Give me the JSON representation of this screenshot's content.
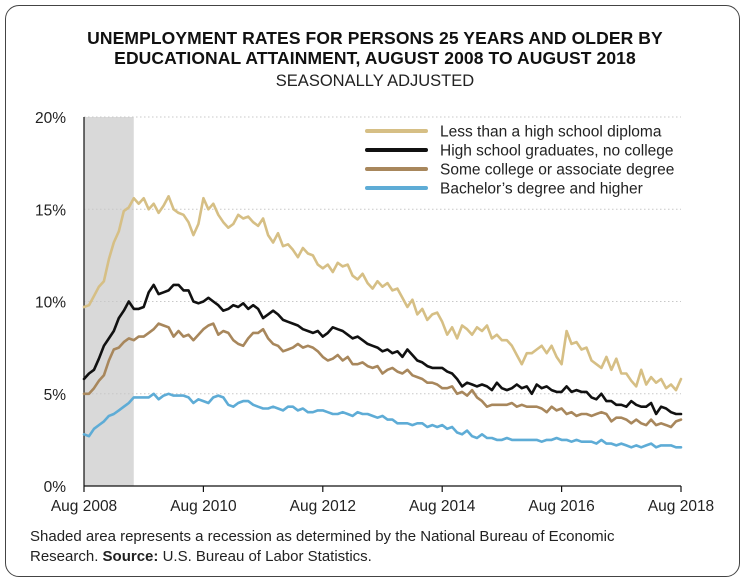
{
  "chart_data": {
    "type": "line",
    "title_line1": "UNEMPLOYMENT RATES FOR PERSONS 25 YEARS AND OLDER BY",
    "title_line2": "EDUCATIONAL ATTAINMENT, AUGUST 2008 TO AUGUST 2018",
    "subtitle": "SEASONALLY ADJUSTED",
    "xlabel": "",
    "ylabel": "",
    "x_range": [
      "Aug 2008",
      "Aug 2018"
    ],
    "ylim": [
      0,
      20
    ],
    "x_ticks": [
      "Aug 2008",
      "Aug 2010",
      "Aug 2012",
      "Aug 2014",
      "Aug 2016",
      "Aug 2018"
    ],
    "y_ticks": [
      {
        "value": 0,
        "label": "0%"
      },
      {
        "value": 5,
        "label": "5%"
      },
      {
        "value": 10,
        "label": "10%"
      },
      {
        "value": 15,
        "label": "15%"
      },
      {
        "value": 20,
        "label": "20%"
      }
    ],
    "grid": true,
    "legend_position": "top-right",
    "recession_shade": {
      "start": "Aug 2008",
      "end": "Jun 2009",
      "color": "#d9d9d9"
    },
    "series": [
      {
        "name": "Less than a high school diploma",
        "color": "#d6bf85",
        "monthly_start": "Aug 2008",
        "values": [
          9.7,
          9.8,
          10.3,
          10.8,
          11.1,
          12.3,
          13.2,
          13.8,
          14.9,
          15.1,
          15.6,
          15.3,
          15.6,
          15.0,
          15.3,
          14.8,
          15.2,
          15.7,
          15.0,
          14.8,
          14.7,
          14.3,
          13.6,
          14.2,
          15.6,
          15.0,
          15.3,
          14.7,
          14.3,
          14.0,
          14.2,
          14.7,
          14.5,
          14.6,
          14.3,
          14.1,
          14.5,
          13.6,
          13.2,
          13.7,
          13.0,
          13.1,
          12.8,
          12.4,
          12.9,
          12.6,
          12.5,
          12.0,
          11.8,
          12.0,
          11.6,
          12.1,
          11.9,
          12.0,
          11.4,
          11.2,
          11.5,
          11.0,
          10.7,
          11.1,
          10.8,
          11.0,
          10.6,
          10.7,
          10.2,
          9.7,
          10.1,
          9.3,
          9.6,
          9.0,
          9.3,
          9.4,
          8.9,
          8.2,
          8.6,
          8.0,
          8.7,
          8.5,
          8.2,
          8.6,
          8.4,
          8.7,
          8.0,
          8.2,
          7.9,
          7.9,
          7.6,
          7.1,
          6.6,
          7.2,
          7.2,
          7.4,
          7.6,
          7.2,
          7.6,
          7.0,
          6.6,
          8.4,
          7.7,
          7.8,
          7.4,
          7.5,
          6.8,
          6.6,
          6.4,
          7.0,
          6.3,
          6.9,
          6.1,
          6.1,
          5.7,
          5.4,
          6.3,
          5.5,
          5.9,
          5.6,
          5.8,
          5.3,
          5.5,
          5.2,
          5.8
        ]
      },
      {
        "name": "High school graduates, no college",
        "color": "#111111",
        "monthly_start": "Aug 2008",
        "values": [
          5.8,
          6.1,
          6.3,
          6.9,
          7.6,
          8.0,
          8.4,
          9.1,
          9.5,
          10.0,
          9.6,
          9.6,
          9.7,
          10.5,
          10.9,
          10.4,
          10.5,
          10.6,
          10.9,
          10.9,
          10.6,
          10.6,
          10.0,
          9.9,
          10.0,
          10.2,
          10.0,
          9.8,
          9.5,
          9.6,
          9.8,
          9.7,
          9.9,
          9.6,
          9.8,
          9.6,
          9.1,
          9.3,
          9.5,
          9.3,
          9.0,
          8.9,
          8.8,
          8.7,
          8.5,
          8.4,
          8.3,
          8.4,
          8.1,
          8.3,
          8.6,
          8.5,
          8.4,
          8.2,
          8.0,
          8.1,
          7.9,
          7.7,
          7.6,
          7.5,
          7.3,
          7.4,
          7.2,
          7.3,
          7.0,
          7.4,
          7.1,
          6.8,
          6.7,
          6.5,
          6.4,
          6.4,
          6.4,
          6.2,
          6.1,
          5.8,
          5.4,
          5.6,
          5.5,
          5.4,
          5.5,
          5.4,
          5.2,
          5.6,
          5.3,
          5.2,
          5.3,
          5.5,
          5.3,
          5.4,
          5.0,
          5.5,
          5.3,
          5.4,
          5.2,
          5.1,
          5.1,
          5.4,
          5.1,
          5.2,
          5.1,
          5.1,
          4.8,
          4.7,
          5.0,
          4.6,
          4.6,
          4.4,
          4.4,
          4.3,
          4.6,
          4.4,
          4.3,
          4.3,
          4.5,
          3.9,
          4.3,
          4.2,
          4.0,
          3.9,
          3.9
        ]
      },
      {
        "name": "Some college or associate degree",
        "color": "#a8875c",
        "monthly_start": "Aug 2008",
        "values": [
          5.0,
          5.0,
          5.3,
          5.7,
          6.0,
          6.8,
          7.4,
          7.5,
          7.8,
          8.0,
          7.9,
          8.1,
          8.1,
          8.3,
          8.5,
          8.8,
          8.7,
          8.6,
          8.1,
          8.4,
          8.1,
          8.2,
          7.9,
          8.2,
          8.5,
          8.7,
          8.8,
          8.2,
          8.4,
          8.3,
          7.9,
          7.7,
          7.6,
          8.0,
          8.3,
          8.3,
          8.5,
          8.0,
          7.7,
          7.6,
          7.3,
          7.4,
          7.5,
          7.7,
          7.5,
          7.6,
          7.5,
          7.3,
          7.0,
          6.8,
          6.9,
          7.1,
          6.8,
          7.0,
          6.6,
          6.6,
          6.7,
          6.5,
          6.4,
          6.5,
          6.1,
          6.3,
          6.4,
          6.2,
          6.1,
          6.3,
          6.0,
          5.9,
          5.8,
          5.6,
          5.6,
          5.5,
          5.3,
          5.3,
          5.4,
          5.0,
          5.1,
          4.9,
          5.2,
          4.8,
          4.6,
          4.3,
          4.4,
          4.4,
          4.4,
          4.4,
          4.5,
          4.3,
          4.4,
          4.3,
          4.3,
          4.3,
          4.2,
          4.0,
          4.3,
          4.1,
          4.2,
          3.9,
          4.0,
          3.8,
          3.9,
          3.9,
          3.8,
          3.9,
          4.0,
          3.9,
          3.5,
          3.7,
          3.7,
          3.6,
          3.4,
          3.6,
          3.4,
          3.3,
          3.6,
          3.3,
          3.4,
          3.3,
          3.2,
          3.5,
          3.6
        ]
      },
      {
        "name": "Bachelor’s degree and higher",
        "color": "#5eacd6",
        "monthly_start": "Aug 2008",
        "values": [
          2.8,
          2.7,
          3.1,
          3.3,
          3.5,
          3.8,
          3.9,
          4.1,
          4.3,
          4.5,
          4.8,
          4.8,
          4.8,
          4.8,
          5.0,
          4.7,
          4.9,
          5.0,
          4.9,
          4.9,
          4.9,
          4.8,
          4.5,
          4.7,
          4.6,
          4.5,
          4.8,
          4.9,
          4.8,
          4.4,
          4.3,
          4.5,
          4.6,
          4.6,
          4.4,
          4.3,
          4.2,
          4.2,
          4.3,
          4.2,
          4.1,
          4.3,
          4.3,
          4.1,
          4.2,
          4.0,
          4.0,
          4.1,
          4.1,
          4.0,
          3.9,
          3.9,
          4.0,
          3.9,
          3.8,
          4.0,
          3.9,
          3.9,
          3.8,
          3.7,
          3.8,
          3.6,
          3.6,
          3.4,
          3.4,
          3.4,
          3.3,
          3.4,
          3.4,
          3.2,
          3.3,
          3.2,
          3.3,
          3.1,
          3.2,
          2.9,
          2.8,
          3.0,
          2.7,
          2.6,
          2.8,
          2.6,
          2.6,
          2.5,
          2.5,
          2.6,
          2.5,
          2.5,
          2.5,
          2.5,
          2.5,
          2.5,
          2.4,
          2.5,
          2.5,
          2.6,
          2.5,
          2.5,
          2.4,
          2.5,
          2.4,
          2.4,
          2.4,
          2.3,
          2.5,
          2.3,
          2.3,
          2.2,
          2.3,
          2.2,
          2.1,
          2.2,
          2.1,
          2.2,
          2.3,
          2.1,
          2.2,
          2.2,
          2.2,
          2.1,
          2.1
        ]
      }
    ]
  },
  "footnote": {
    "line1": "Shaded area represents a recession as determined by the National Bureau of Economic",
    "line2_prefix": "Research. ",
    "source_label": "Source:",
    "source_text": " U.S. Bureau of Labor Statistics."
  }
}
